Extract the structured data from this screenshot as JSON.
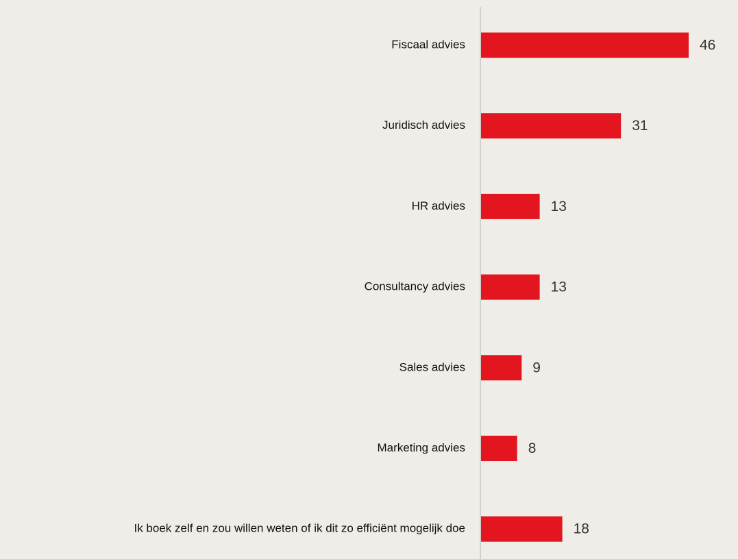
{
  "chart_data": {
    "type": "bar",
    "orientation": "horizontal",
    "categories": [
      "Fiscaal advies",
      "Juridisch advies",
      "HR advies",
      "Consultancy advies",
      "Sales advies",
      "Marketing advies",
      "Ik boek zelf en zou willen weten of ik dit zo efficiënt mogelijk doe"
    ],
    "values": [
      46,
      31,
      13,
      13,
      9,
      8,
      18
    ],
    "data_labels": [
      "46",
      "31",
      "13",
      "13",
      "9",
      "8",
      "18"
    ],
    "title": "",
    "xlabel": "",
    "ylabel": "",
    "xlim": [
      0,
      46
    ],
    "grid": false,
    "legend": "none",
    "colors": {
      "bar": "#e3161f",
      "background": "#f0ede8",
      "axis": "#c9c6c1"
    }
  }
}
